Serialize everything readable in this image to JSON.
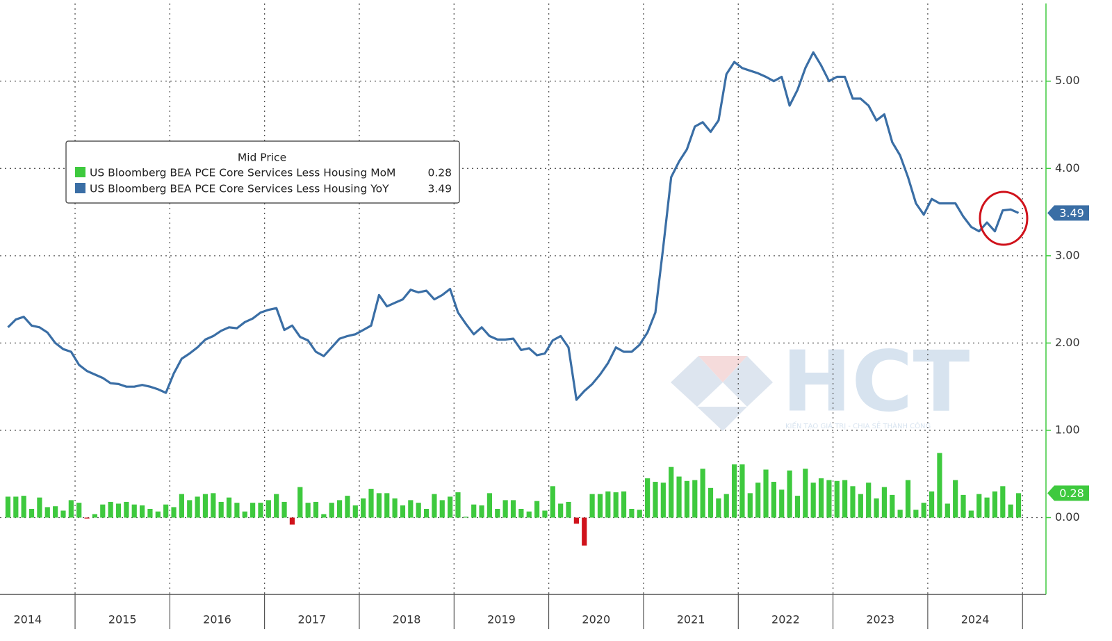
{
  "chart_data": {
    "type": "bar-line",
    "legend_title": "Mid Price",
    "categories": [
      null,
      null,
      "2014",
      null,
      null,
      null,
      null,
      null,
      null,
      null,
      null,
      null,
      null,
      null,
      "2015",
      null,
      null,
      null,
      null,
      null,
      null,
      null,
      null,
      null,
      null,
      null,
      "2016",
      null,
      null,
      null,
      null,
      null,
      null,
      null,
      null,
      null,
      null,
      null,
      "2017",
      null,
      null,
      null,
      null,
      null,
      null,
      null,
      null,
      null,
      null,
      null,
      "2018",
      null,
      null,
      null,
      null,
      null,
      null,
      null,
      null,
      null,
      null,
      null,
      "2019",
      null,
      null,
      null,
      null,
      null,
      null,
      null,
      null,
      null,
      null,
      null,
      "2020",
      null,
      null,
      null,
      null,
      null,
      null,
      null,
      null,
      null,
      null,
      null,
      "2021",
      null,
      null,
      null,
      null,
      null,
      null,
      null,
      null,
      null,
      null,
      null,
      "2022",
      null,
      null,
      null,
      null,
      null,
      null,
      null,
      null,
      null,
      null,
      null,
      "2023",
      null,
      null,
      null,
      null,
      null,
      null,
      null,
      null,
      null,
      null,
      null,
      "2024",
      null,
      null,
      null,
      null,
      null,
      null
    ],
    "series": [
      {
        "name": "US Bloomberg BEA PCE Core Services Less Housing MoM",
        "color": "#3ec93e",
        "negative_color": "#d0121b",
        "kind": "bar",
        "values": [
          0.24,
          0.24,
          0.25,
          0.1,
          0.23,
          0.12,
          0.13,
          0.08,
          0.2,
          0.17,
          -0.01,
          0.04,
          0.15,
          0.18,
          0.16,
          0.18,
          0.15,
          0.14,
          0.1,
          0.07,
          0.15,
          0.12,
          0.27,
          0.2,
          0.24,
          0.27,
          0.28,
          0.18,
          0.23,
          0.17,
          0.07,
          0.17,
          0.17,
          0.2,
          0.27,
          0.18,
          -0.08,
          0.35,
          0.17,
          0.18,
          0.04,
          0.17,
          0.2,
          0.25,
          0.14,
          0.22,
          0.33,
          0.28,
          0.28,
          0.22,
          0.14,
          0.2,
          0.17,
          0.1,
          0.27,
          0.2,
          0.24,
          0.29,
          0.01,
          0.15,
          0.14,
          0.28,
          0.1,
          0.2,
          0.2,
          0.1,
          0.07,
          0.19,
          0.08,
          0.36,
          0.16,
          0.18,
          -0.07,
          -0.32,
          0.27,
          0.27,
          0.3,
          0.29,
          0.3,
          0.1,
          0.09,
          0.45,
          0.41,
          0.4,
          0.58,
          0.47,
          0.42,
          0.43,
          0.56,
          0.34,
          0.22,
          0.27,
          0.61,
          0.61,
          0.28,
          0.4,
          0.55,
          0.41,
          0.32,
          0.54,
          0.25,
          0.56,
          0.4,
          0.45,
          0.43,
          0.42,
          0.43,
          0.36,
          0.27,
          0.4,
          0.22,
          0.35,
          0.26,
          0.09,
          0.43,
          0.09,
          0.17,
          0.3,
          0.74,
          0.16,
          0.43,
          0.26,
          0.08,
          0.27,
          0.23,
          0.3,
          0.36,
          0.15,
          0.28
        ]
      },
      {
        "name": "US Bloomberg BEA PCE Core Services Less Housing YoY",
        "color": "#3a6ea5",
        "kind": "line",
        "values": [
          2.18,
          2.27,
          2.3,
          2.2,
          2.18,
          2.12,
          2.0,
          1.93,
          1.9,
          1.75,
          1.68,
          1.64,
          1.6,
          1.54,
          1.53,
          1.5,
          1.5,
          1.52,
          1.5,
          1.47,
          1.43,
          1.65,
          1.82,
          1.88,
          1.95,
          2.04,
          2.08,
          2.14,
          2.18,
          2.17,
          2.24,
          2.28,
          2.35,
          2.38,
          2.4,
          2.15,
          2.2,
          2.07,
          2.03,
          1.9,
          1.85,
          1.95,
          2.05,
          2.08,
          2.1,
          2.15,
          2.2,
          2.55,
          2.42,
          2.46,
          2.5,
          2.61,
          2.58,
          2.6,
          2.5,
          2.55,
          2.62,
          2.35,
          2.22,
          2.1,
          2.18,
          2.08,
          2.04,
          2.04,
          2.05,
          1.92,
          1.94,
          1.86,
          1.88,
          2.03,
          2.08,
          1.95,
          1.35,
          1.45,
          1.53,
          1.64,
          1.77,
          1.95,
          1.9,
          1.9,
          1.98,
          2.12,
          2.35,
          3.1,
          3.9,
          4.08,
          4.22,
          4.48,
          4.53,
          4.42,
          4.55,
          5.08,
          5.22,
          5.15,
          5.12,
          5.09,
          5.05,
          5.0,
          5.05,
          4.72,
          4.9,
          5.15,
          5.33,
          5.18,
          5.0,
          5.05,
          5.05,
          4.8,
          4.8,
          4.72,
          4.55,
          4.62,
          4.3,
          4.15,
          3.9,
          3.6,
          3.47,
          3.65,
          3.6,
          3.6,
          3.6,
          3.45,
          3.33,
          3.28,
          3.38,
          3.28,
          3.52,
          3.53,
          3.49
        ]
      }
    ],
    "ylim": [
      -0.88,
      5.89
    ],
    "yticks": [
      {
        "value": 0,
        "label": "0.00"
      },
      {
        "value": 1,
        "label": "1.00"
      },
      {
        "value": 2,
        "label": "2.00"
      },
      {
        "value": 3,
        "label": "3.00"
      },
      {
        "value": 4,
        "label": "4.00"
      },
      {
        "value": 5,
        "label": "5.00"
      }
    ],
    "grid": true,
    "watermark": {
      "text": "HCT",
      "tagline": "KIẾN TẠO GIÁ TRỊ - CHIA SẺ THÀNH CÔNG"
    }
  }
}
